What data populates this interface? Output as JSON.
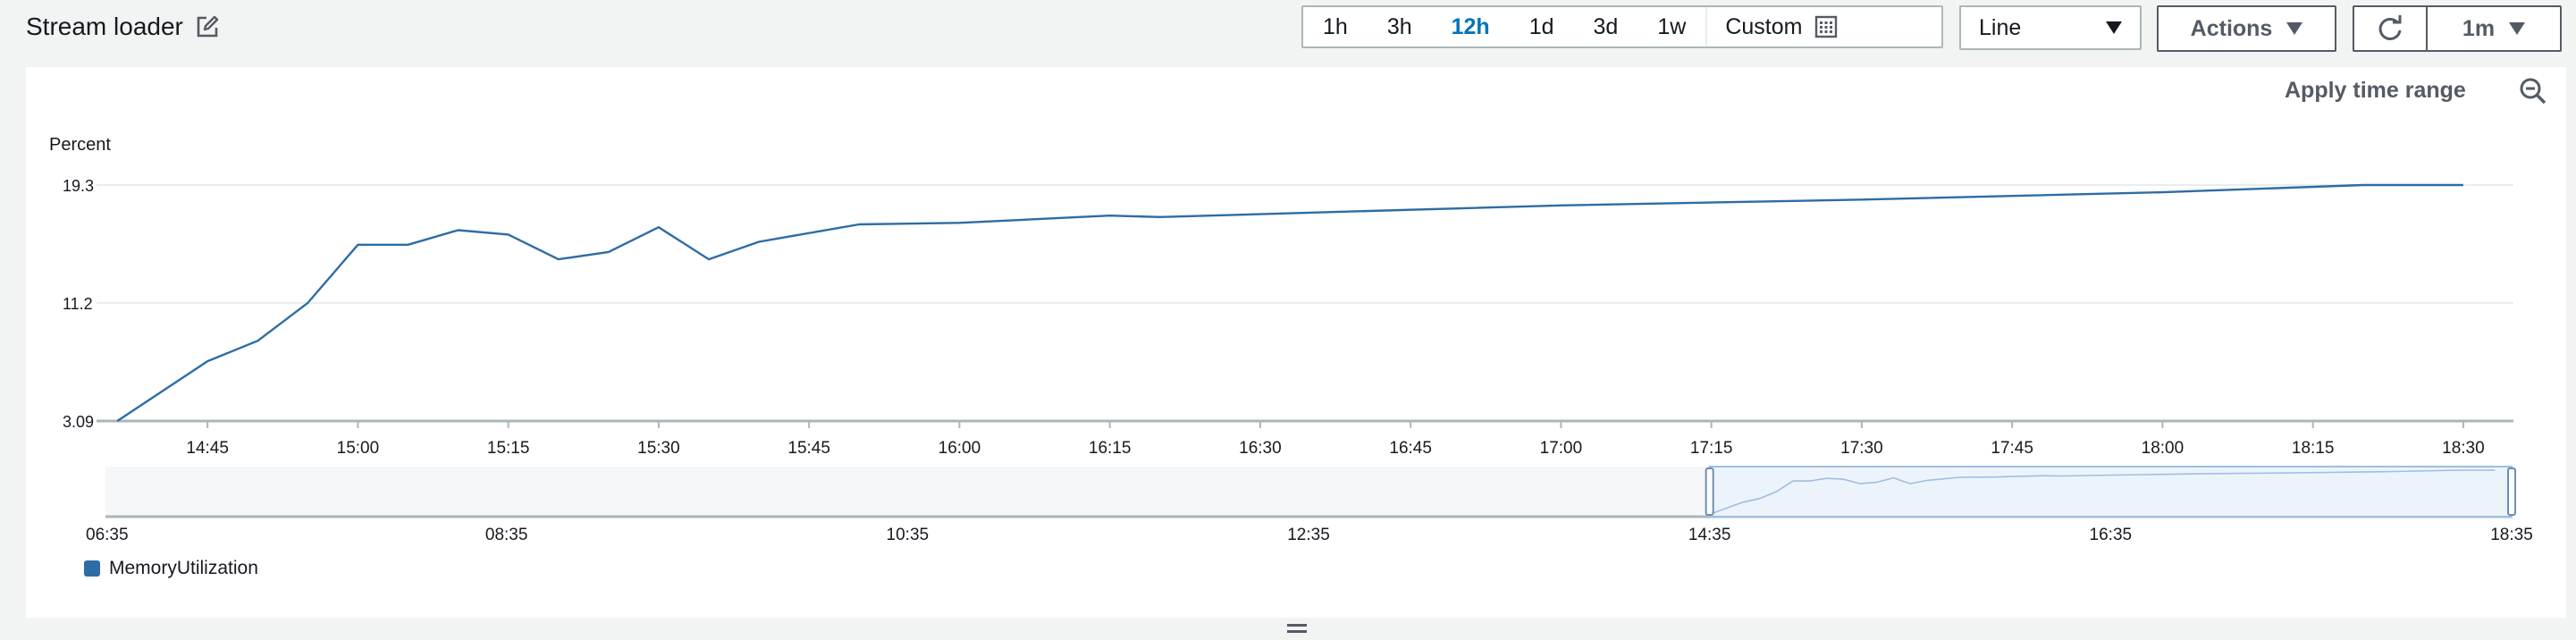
{
  "header": {
    "title": "Stream loader",
    "time_ranges": [
      "1h",
      "3h",
      "12h",
      "1d",
      "3d",
      "1w"
    ],
    "active_range": "12h",
    "custom_label": "Custom",
    "chart_type_value": "Line",
    "actions_label": "Actions",
    "interval_label": "1m"
  },
  "panel": {
    "apply_time_range_label": "Apply time range"
  },
  "colors": {
    "series": "#2e6ca4",
    "accent": "#0073bb"
  },
  "chart_data": {
    "type": "line",
    "ylabel": "Percent",
    "y_ticks": [
      "19.3",
      "11.2",
      "3.09"
    ],
    "ylim": [
      3.09,
      19.3
    ],
    "x_ticks": [
      "14:45",
      "15:00",
      "15:15",
      "15:30",
      "15:45",
      "16:00",
      "16:15",
      "16:30",
      "16:45",
      "17:00",
      "17:15",
      "17:30",
      "17:45",
      "18:00",
      "18:15",
      "18:30"
    ],
    "x_start": "14:35",
    "x_end": "18:35",
    "series": [
      {
        "name": "MemoryUtilization",
        "points": [
          [
            "14:36",
            3.09
          ],
          [
            "14:45",
            7.2
          ],
          [
            "14:50",
            8.6
          ],
          [
            "14:55",
            11.2
          ],
          [
            "15:00",
            15.2
          ],
          [
            "15:05",
            15.2
          ],
          [
            "15:10",
            16.2
          ],
          [
            "15:15",
            15.9
          ],
          [
            "15:20",
            14.2
          ],
          [
            "15:25",
            14.7
          ],
          [
            "15:30",
            16.4
          ],
          [
            "15:35",
            14.2
          ],
          [
            "15:40",
            15.4
          ],
          [
            "15:50",
            16.6
          ],
          [
            "16:00",
            16.7
          ],
          [
            "16:15",
            17.2
          ],
          [
            "16:20",
            17.1
          ],
          [
            "17:00",
            17.9
          ],
          [
            "17:30",
            18.3
          ],
          [
            "18:00",
            18.8
          ],
          [
            "18:20",
            19.3
          ],
          [
            "18:30",
            19.3
          ]
        ]
      }
    ],
    "overview": {
      "x_ticks": [
        "06:35",
        "08:35",
        "10:35",
        "12:35",
        "14:35",
        "16:35",
        "18:35"
      ],
      "x_start": "06:35",
      "x_end": "18:35",
      "brush_start": "14:35",
      "brush_end": "18:35"
    },
    "legend_position": "bottom-left",
    "grid": true
  }
}
